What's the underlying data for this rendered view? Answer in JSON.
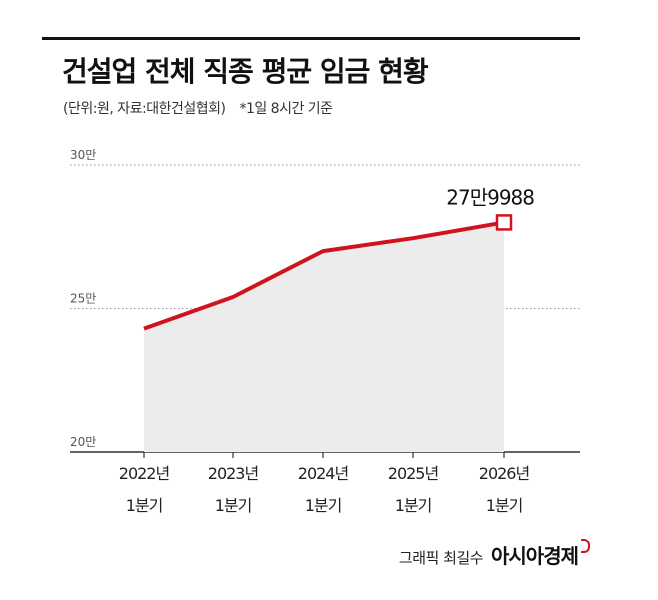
{
  "header": {
    "title": "건설업 전체 직종 평균 임금 현황",
    "subtitle": "(단위:원, 자료:대한건설협회)",
    "note": "*1일 8시간 기준"
  },
  "chart_data": {
    "type": "area",
    "title": "건설업 전체 직종 평균 임금 현황",
    "unit": "원",
    "categories": [
      "2022년 1분기",
      "2023년 1분기",
      "2024년 1분기",
      "2025년 1분기",
      "2026년 1분기"
    ],
    "category_lines": [
      [
        "2022년",
        "1분기"
      ],
      [
        "2023년",
        "1분기"
      ],
      [
        "2024년",
        "1분기"
      ],
      [
        "2025년",
        "1분기"
      ],
      [
        "2026년",
        "1분기"
      ]
    ],
    "series": [
      {
        "values": [
          243000,
          254000,
          270000,
          274500,
          279988
        ]
      }
    ],
    "ylim": [
      200000,
      300000
    ],
    "yticks": [
      {
        "value": 300000,
        "label": "30만"
      },
      {
        "value": 250000,
        "label": "25만"
      },
      {
        "value": 200000,
        "label": "20만"
      }
    ],
    "data_label": {
      "index": 4,
      "text": "27만9988"
    },
    "grid": "dotted",
    "colors": {
      "line": "#d0141e",
      "area": "#ececec",
      "grid": "#9a9a9a"
    }
  },
  "footer": {
    "author": "그래픽 최길수",
    "brand": "아시아경제"
  }
}
